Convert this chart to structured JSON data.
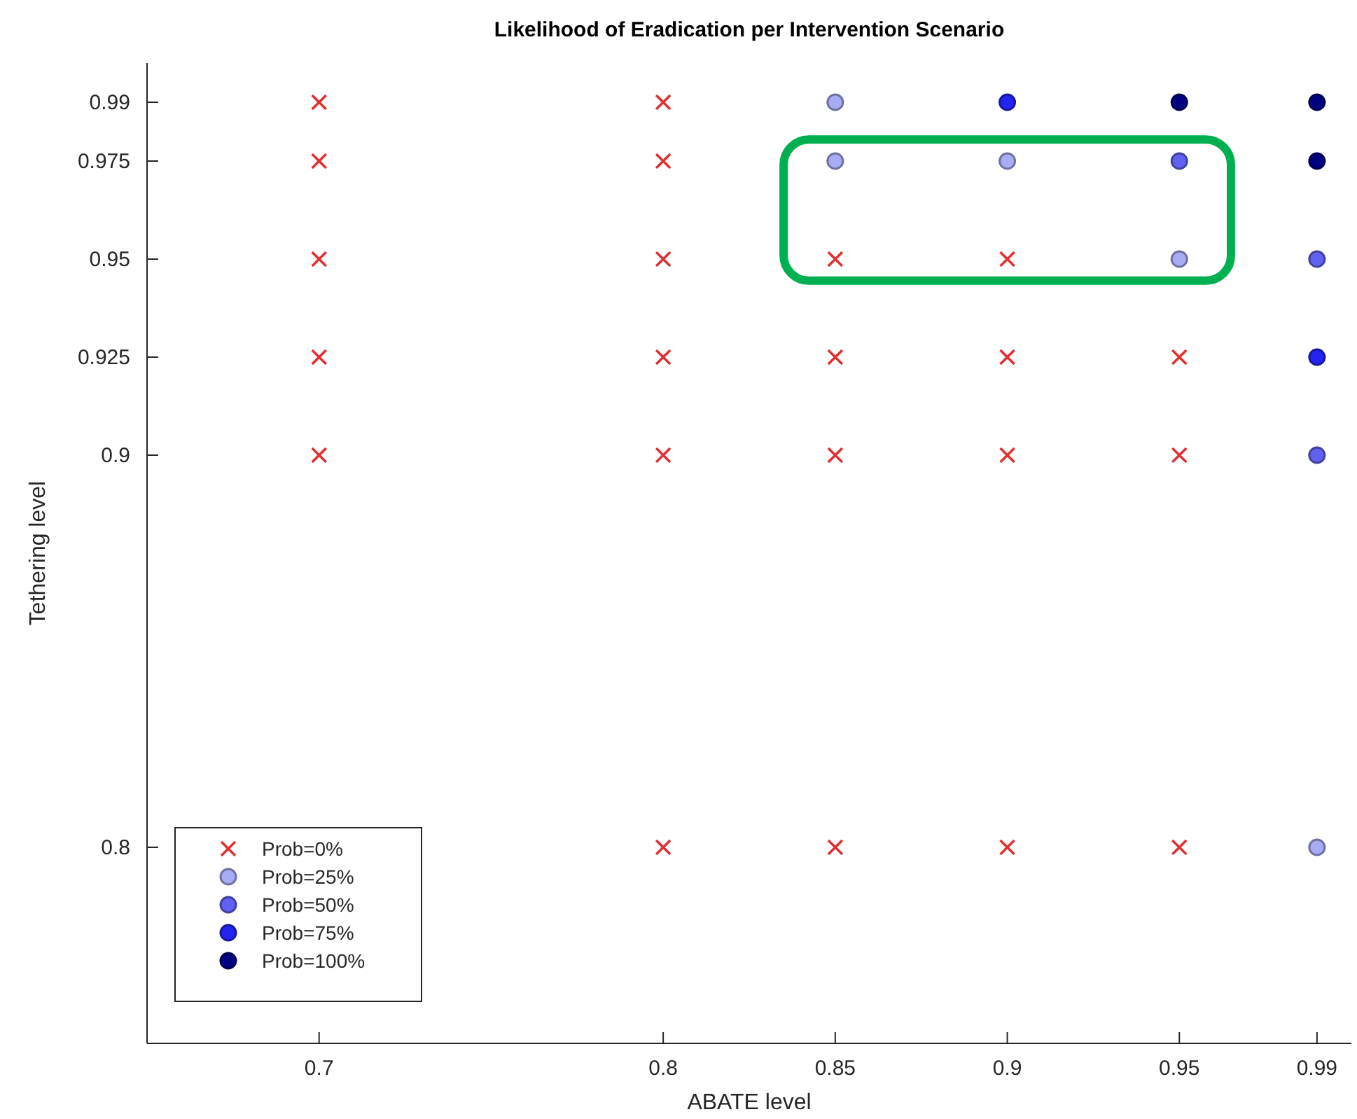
{
  "chart_data": {
    "type": "scatter",
    "title": "Likelihood of Eradication per Intervention Scenario",
    "xlabel": "ABATE level",
    "ylabel": "Tethering level",
    "xlim": [
      0.65,
      1.0
    ],
    "xticks": [
      0.7,
      0.8,
      0.85,
      0.9,
      0.95,
      0.99
    ],
    "ylim": [
      0.75,
      1.0
    ],
    "yticks": [
      0.8,
      0.9,
      0.925,
      0.95,
      0.975,
      0.99
    ],
    "grid": false,
    "legend": "bottom left",
    "series": [
      {
        "name": "Prob=0%",
        "color": "#e03030",
        "marker": "cross",
        "x": [
          0.7,
          0.7,
          0.7,
          0.7,
          0.7,
          0.8,
          0.8,
          0.8,
          0.8,
          0.8,
          0.8,
          0.85,
          0.85,
          0.85,
          0.85,
          0.9,
          0.9,
          0.9,
          0.9,
          0.95,
          0.95,
          0.95
        ],
        "values": [
          0.9,
          0.925,
          0.95,
          0.975,
          0.99,
          0.8,
          0.9,
          0.925,
          0.95,
          0.975,
          0.99,
          0.8,
          0.9,
          0.925,
          0.95,
          0.8,
          0.9,
          0.925,
          0.95,
          0.8,
          0.9,
          0.925
        ]
      },
      {
        "name": "Prob=25%",
        "color": "#a8acf4",
        "marker": "circle",
        "x": [
          0.85,
          0.85,
          0.9,
          0.95,
          0.99
        ],
        "values": [
          0.975,
          0.99,
          0.975,
          0.95,
          0.8
        ]
      },
      {
        "name": "Prob=50%",
        "color": "#6262f2",
        "marker": "circle",
        "x": [
          0.95,
          0.99,
          0.99
        ],
        "values": [
          0.975,
          0.9,
          0.95
        ]
      },
      {
        "name": "Prob=75%",
        "color": "#2424f0",
        "marker": "circle",
        "x": [
          0.9,
          0.99
        ],
        "values": [
          0.99,
          0.925
        ]
      },
      {
        "name": "Prob=100%",
        "color": "#000080",
        "marker": "circle",
        "x": [
          0.95,
          0.99,
          0.99
        ],
        "values": [
          0.99,
          0.975,
          0.99
        ]
      }
    ]
  }
}
